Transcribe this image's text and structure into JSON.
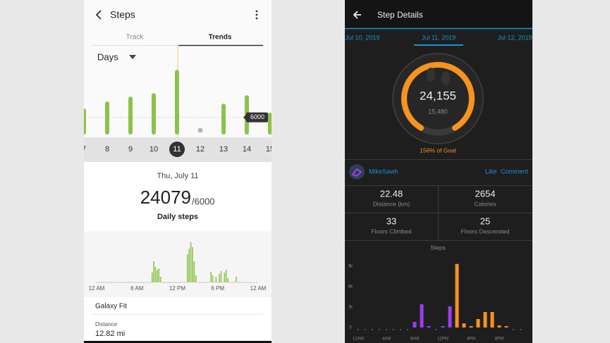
{
  "left": {
    "header": {
      "title": "Steps"
    },
    "tabs": [
      "Track",
      "Trends"
    ],
    "period": "Days",
    "daily_chart": {
      "type": "bar",
      "categories": [
        "7",
        "8",
        "9",
        "10",
        "11",
        "12",
        "13",
        "14",
        "15"
      ],
      "values": [
        8700,
        11500,
        13400,
        14800,
        24079,
        0,
        10600,
        14000,
        7000
      ],
      "color": "#8bc34a",
      "goal": 6000,
      "ylim": [
        0,
        30000
      ]
    },
    "summary": {
      "date": "Thu, July 11",
      "steps": 24079,
      "goal_label": "/6000",
      "label": "Daily steps"
    },
    "hourly_chart": {
      "type": "bar",
      "color": "#8bc34a",
      "ylim": [
        0,
        1500
      ],
      "values": [
        0,
        0,
        0,
        0,
        0,
        0,
        0,
        0,
        0,
        0,
        0,
        0,
        0,
        0,
        0,
        0,
        0,
        0,
        0,
        0,
        0,
        0,
        0,
        0,
        0,
        0,
        0,
        0,
        0,
        0,
        0,
        0,
        0,
        350,
        750,
        550,
        450,
        500,
        200,
        0,
        0,
        0,
        0,
        0,
        0,
        0,
        0,
        0,
        0,
        0,
        0,
        0,
        0,
        0,
        1000,
        1200,
        1425,
        1250,
        750,
        250,
        0,
        0,
        0,
        0,
        0,
        0,
        0,
        0,
        375,
        250,
        0,
        200,
        0,
        300,
        400,
        0,
        350,
        450,
        150,
        0,
        0,
        0,
        0,
        200,
        0,
        0,
        0,
        0,
        0,
        0,
        0,
        0,
        0,
        0,
        0,
        0
      ],
      "x_labels": [
        "12 AM",
        "6 AM",
        "12 PM",
        "6 PM",
        "12 AM"
      ]
    },
    "device": "Galaxy Fit",
    "distance": {
      "label": "Distance",
      "value": "12.82 mi"
    }
  },
  "right": {
    "header": {
      "title": "Step Details"
    },
    "dates": [
      "Jul 10, 2019",
      "Jul 11, 2019",
      "Jul 12, 2019"
    ],
    "ring": {
      "steps": "24,155",
      "goal": "15,480",
      "progress": "156% of Goal"
    },
    "user": "MikeSawh",
    "actions": [
      "Like",
      "Comment"
    ],
    "stats": [
      {
        "value": "22.48",
        "label": "Distance (km)"
      },
      {
        "value": "2654",
        "label": "Calories"
      },
      {
        "value": "33",
        "label": "Floors Climbed"
      },
      {
        "value": "25",
        "label": "Floors Descended"
      }
    ],
    "steps_chart": {
      "type": "bar",
      "title": "Steps",
      "values": [
        0,
        0,
        0,
        0,
        0,
        0,
        0,
        0,
        830,
        3400,
        200,
        0,
        200,
        3100,
        9300,
        600,
        200,
        1240,
        2270,
        2270,
        300,
        200,
        0,
        0
      ],
      "colors": [
        "#9b3df0",
        "#9b3df0",
        "#9b3df0",
        "#9b3df0",
        "#9b3df0",
        "#9b3df0",
        "#9b3df0",
        "#9b3df0",
        "#9b3df0",
        "#9b3df0",
        "#9b3df0",
        "#9b3df0",
        "#9b3df0",
        "#9b3df0",
        "#f7931e",
        "#f7931e",
        "#f7931e",
        "#f7931e",
        "#f7931e",
        "#f7931e",
        "#f7931e",
        "#f7931e",
        "#f7931e",
        "#f7931e"
      ],
      "ylim": [
        0,
        10000
      ],
      "yticks": [
        {
          "value": 9000,
          "label": "9k"
        },
        {
          "value": 6000,
          "label": "6k"
        },
        {
          "value": 3000,
          "label": "3k"
        },
        0
      ],
      "x_labels": [
        "12AM",
        "4AM",
        "8AM",
        "12PM",
        "4PM",
        "8PM"
      ]
    }
  }
}
